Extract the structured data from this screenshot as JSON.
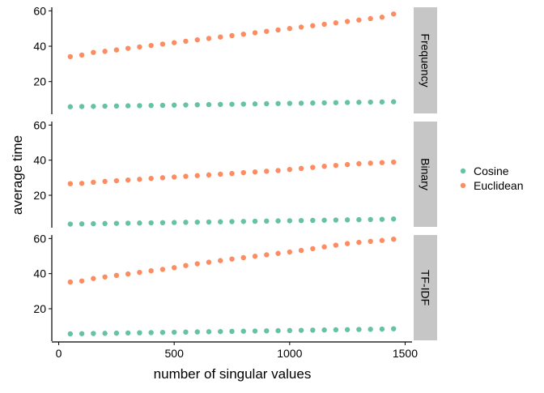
{
  "chart_data": {
    "type": "scatter",
    "xlabel": "number of singular values",
    "ylabel": "average time",
    "xlim": [
      -30,
      1530
    ],
    "ylim": [
      2,
      62
    ],
    "x_ticks": [
      0,
      500,
      1000,
      1500
    ],
    "y_ticks": [
      20,
      40,
      60
    ],
    "grid": false,
    "legend_position": "right",
    "facets": [
      "Frequency",
      "Binary",
      "TF-IDF"
    ],
    "x": [
      50,
      100,
      150,
      200,
      250,
      300,
      350,
      400,
      450,
      500,
      550,
      600,
      650,
      700,
      750,
      800,
      850,
      900,
      950,
      1000,
      1050,
      1100,
      1150,
      1200,
      1250,
      1300,
      1350,
      1400,
      1450
    ],
    "series": [
      {
        "name": "Cosine",
        "color": "#66C2A5",
        "values": {
          "Frequency": [
            5.8,
            5.9,
            6.0,
            6.1,
            6.2,
            6.3,
            6.4,
            6.5,
            6.6,
            6.7,
            6.8,
            6.9,
            7.0,
            7.1,
            7.2,
            7.3,
            7.4,
            7.5,
            7.6,
            7.7,
            7.8,
            7.9,
            8.0,
            8.1,
            8.2,
            8.3,
            8.4,
            8.5,
            8.6
          ],
          "Binary": [
            3.6,
            3.7,
            3.8,
            3.9,
            4.0,
            4.1,
            4.2,
            4.3,
            4.4,
            4.5,
            4.6,
            4.7,
            4.8,
            4.9,
            5.0,
            5.1,
            5.2,
            5.3,
            5.4,
            5.5,
            5.6,
            5.7,
            5.8,
            5.9,
            6.0,
            6.1,
            6.2,
            6.3,
            6.5
          ],
          "TF-IDF": [
            5.7,
            5.8,
            5.9,
            6.0,
            6.1,
            6.2,
            6.3,
            6.4,
            6.5,
            6.6,
            6.7,
            6.8,
            6.9,
            7.0,
            7.1,
            7.2,
            7.3,
            7.4,
            7.5,
            7.6,
            7.7,
            7.8,
            7.9,
            8.0,
            8.1,
            8.2,
            8.3,
            8.4,
            8.6
          ]
        }
      },
      {
        "name": "Euclidean",
        "color": "#FC8D62",
        "values": {
          "Frequency": [
            34.1,
            35.0,
            36.5,
            37.1,
            37.9,
            38.8,
            39.6,
            40.4,
            41.2,
            42.0,
            42.8,
            43.6,
            44.4,
            45.2,
            46.0,
            46.8,
            47.6,
            48.4,
            49.2,
            50.0,
            50.8,
            51.6,
            52.4,
            53.2,
            54.0,
            54.8,
            55.6,
            56.4,
            58.2
          ],
          "Binary": [
            26.6,
            26.8,
            27.4,
            27.9,
            28.3,
            28.7,
            29.1,
            29.6,
            30.0,
            30.4,
            30.8,
            31.2,
            31.6,
            32.0,
            32.4,
            32.9,
            33.3,
            33.7,
            34.1,
            34.7,
            35.3,
            35.9,
            36.5,
            37.0,
            37.5,
            38.0,
            38.3,
            38.6,
            38.9
          ],
          "TF-IDF": [
            35.2,
            35.8,
            37.2,
            38.1,
            39.0,
            39.8,
            40.7,
            41.6,
            42.4,
            43.4,
            44.6,
            45.6,
            46.5,
            47.4,
            48.3,
            49.1,
            49.9,
            50.7,
            51.5,
            52.3,
            53.2,
            54.2,
            55.2,
            56.2,
            57.1,
            57.8,
            58.4,
            58.9,
            59.6
          ]
        }
      }
    ]
  }
}
